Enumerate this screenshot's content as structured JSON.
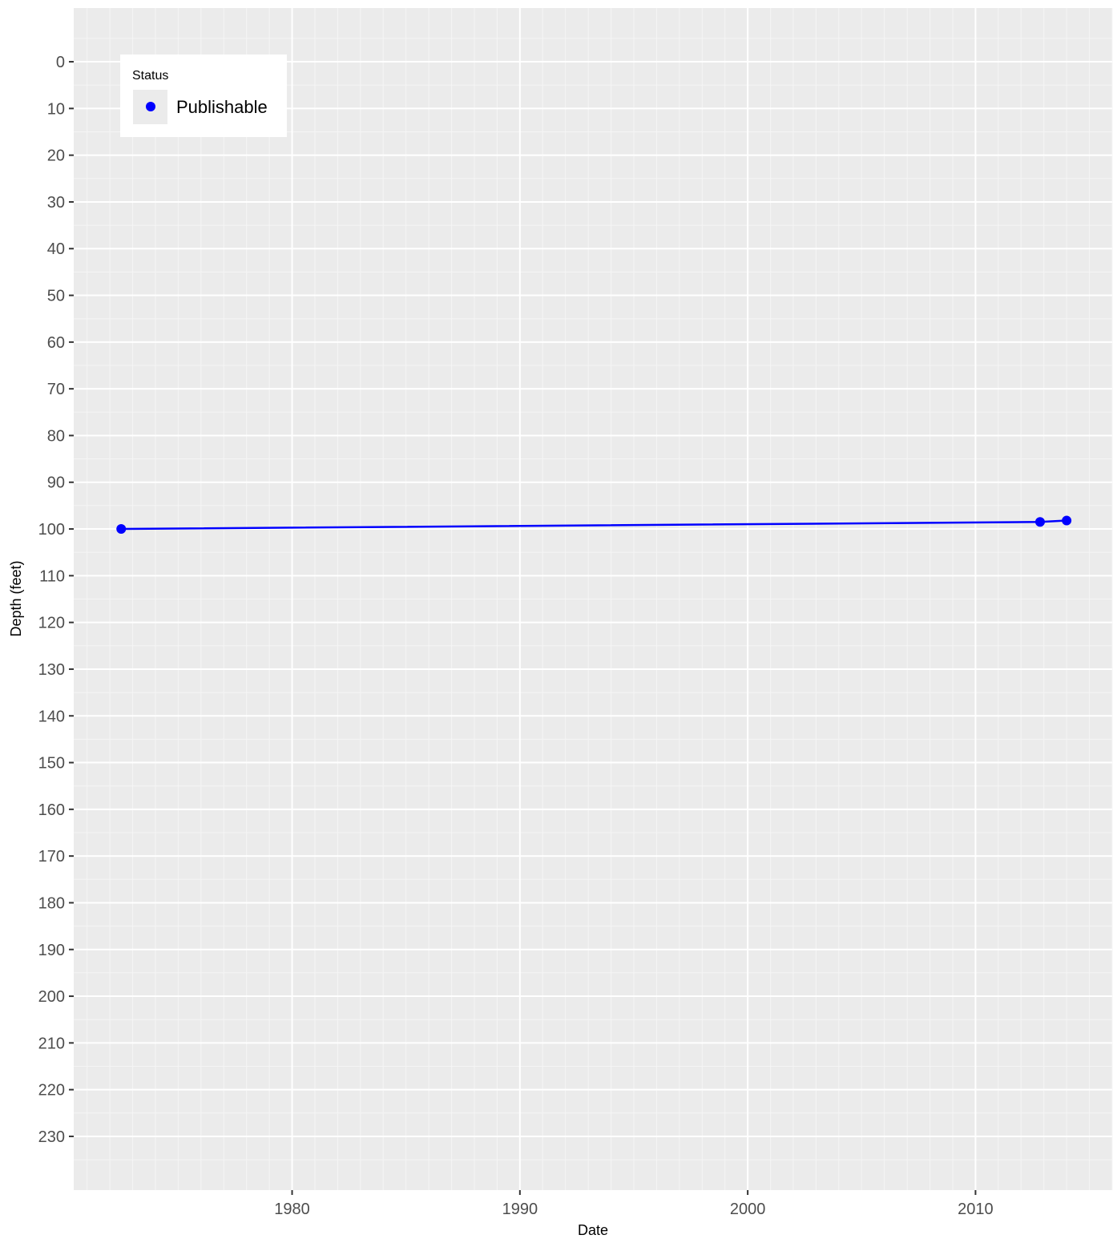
{
  "chart_data": {
    "type": "line",
    "xlabel": "Date",
    "ylabel": "Depth (feet)",
    "x_ticks": [
      "1980",
      "1990",
      "2000",
      "2010"
    ],
    "y_ticks": [
      0,
      10,
      20,
      30,
      40,
      50,
      60,
      70,
      80,
      90,
      100,
      110,
      120,
      130,
      140,
      150,
      160,
      170,
      180,
      190,
      200,
      210,
      220,
      230
    ],
    "y_reversed": true,
    "xlim": [
      "1970-06-01",
      "2016-01-01"
    ],
    "ylim": [
      -11.5,
      241.5
    ],
    "grid": true,
    "legend": {
      "title": "Status",
      "placement": "top-left inside",
      "entries": [
        {
          "label": "Publishable",
          "color": "#0000ff"
        }
      ]
    },
    "series": [
      {
        "name": "Publishable",
        "color": "#0000ff",
        "points": [
          {
            "x": "1972-07-01",
            "y": 100.0
          },
          {
            "x": "2012-11-01",
            "y": 98.5
          },
          {
            "x": "2014-01-01",
            "y": 98.2
          }
        ]
      }
    ]
  },
  "colors": {
    "panel": "#ebebeb",
    "grid_major": "#ffffff",
    "tick_text": "#4d4d4d",
    "series": "#0000ff"
  }
}
